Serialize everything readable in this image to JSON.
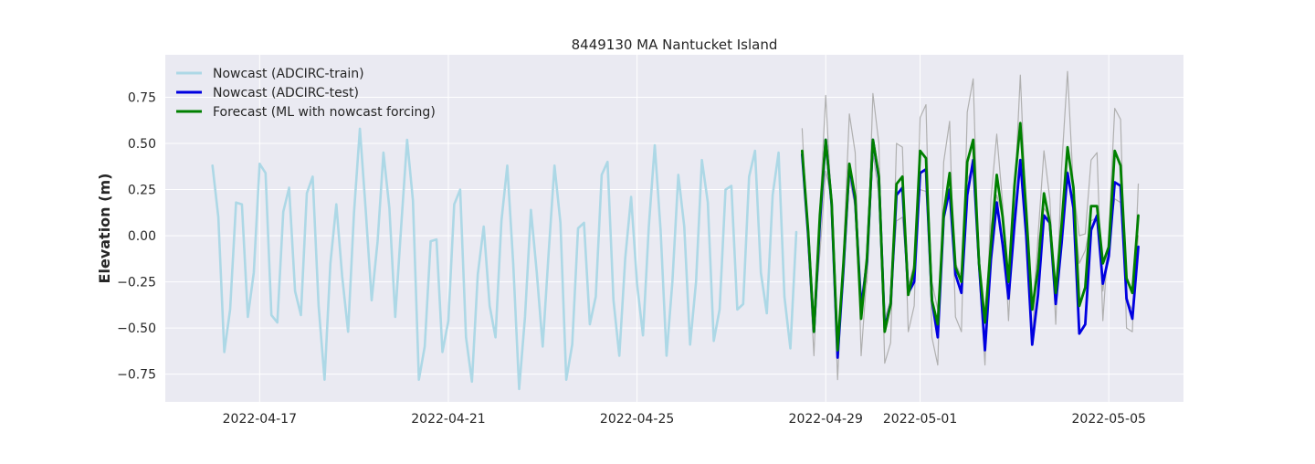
{
  "chart_data": {
    "type": "line",
    "title": "8449130 MA Nantucket Island",
    "xlabel": "",
    "ylabel": "Elevation (m)",
    "x_axis_type": "date",
    "xlim": [
      "2022-04-15T00:00",
      "2022-05-06T14:00"
    ],
    "ylim": [
      -0.9,
      0.98
    ],
    "x_ticks": [
      "2022-04-17",
      "2022-04-21",
      "2022-04-25",
      "2022-04-29",
      "2022-05-01",
      "2022-05-05"
    ],
    "y_ticks": [
      -0.75,
      -0.5,
      -0.25,
      0.0,
      0.25,
      0.5,
      0.75
    ],
    "y_tick_labels": [
      "−0.75",
      "−0.50",
      "−0.25",
      "0.00",
      "0.25",
      "0.50",
      "0.75"
    ],
    "grid": true,
    "legend_position": "upper-left",
    "series": [
      {
        "name": "Nowcast (ADCIRC-train)",
        "color": "#add8e6",
        "start": "2022-04-16T00:00",
        "step_hours": 3,
        "values": [
          0.38,
          0.1,
          -0.63,
          -0.4,
          0.18,
          0.17,
          -0.44,
          -0.2,
          0.39,
          0.34,
          -0.43,
          -0.47,
          0.13,
          0.26,
          -0.3,
          -0.43,
          0.23,
          0.32,
          -0.38,
          -0.78,
          -0.15,
          0.17,
          -0.22,
          -0.52,
          0.12,
          0.58,
          0.13,
          -0.35,
          -0.03,
          0.45,
          0.15,
          -0.44,
          0.05,
          0.52,
          0.19,
          -0.78,
          -0.6,
          -0.03,
          -0.02,
          -0.63,
          -0.46,
          0.17,
          0.25,
          -0.55,
          -0.79,
          -0.21,
          0.05,
          -0.38,
          -0.55,
          0.08,
          0.38,
          -0.15,
          -0.83,
          -0.44,
          0.14,
          -0.2,
          -0.6,
          -0.1,
          0.38,
          0.07,
          -0.78,
          -0.59,
          0.04,
          0.07,
          -0.48,
          -0.33,
          0.33,
          0.4,
          -0.35,
          -0.65,
          -0.12,
          0.21,
          -0.26,
          -0.54,
          0.05,
          0.49,
          0.03,
          -0.65,
          -0.25,
          0.33,
          0.05,
          -0.59,
          -0.25,
          0.41,
          0.18,
          -0.57,
          -0.4,
          0.25,
          0.27,
          -0.4,
          -0.37,
          0.32,
          0.46,
          -0.2,
          -0.42,
          0.22,
          0.45,
          -0.33,
          -0.61,
          0.02
        ]
      },
      {
        "name": "",
        "color": "#b0b0b0",
        "start": "2022-04-28T12:00",
        "step_hours": 3,
        "values": [
          0.58,
          -0.05,
          -0.65,
          0.15,
          0.76,
          0.15,
          -0.78,
          -0.1,
          0.66,
          0.45,
          -0.65,
          -0.2,
          0.77,
          0.5,
          -0.69,
          -0.58,
          0.5,
          0.48,
          -0.52,
          -0.38,
          0.64,
          0.71,
          -0.55,
          -0.7,
          0.4,
          0.62,
          -0.44,
          -0.52,
          0.67,
          0.85,
          -0.2,
          -0.7,
          0.2,
          0.55,
          0.17,
          -0.46,
          0.2,
          0.87,
          0.1,
          -0.58,
          0.0,
          0.46,
          0.2,
          -0.48,
          0.37,
          0.89,
          0.25,
          0.0,
          0.01,
          0.41,
          0.45,
          -0.46,
          0.02,
          0.69,
          0.63,
          -0.5,
          -0.52,
          0.28
        ]
      },
      {
        "name": "",
        "color": "#b0b0b0",
        "start": "2022-04-28T12:00",
        "step_hours": 3,
        "values": [
          0.42,
          0.05,
          -0.45,
          -0.1,
          0.35,
          0.2,
          -0.6,
          -0.25,
          0.32,
          0.15,
          -0.4,
          -0.25,
          0.45,
          0.22,
          -0.45,
          -0.35,
          0.08,
          0.1,
          -0.28,
          -0.15,
          0.25,
          0.24,
          -0.25,
          -0.4,
          0.08,
          0.25,
          -0.15,
          -0.22,
          0.3,
          0.38,
          -0.2,
          -0.45,
          0.05,
          0.22,
          0.1,
          -0.25,
          0.1,
          0.4,
          0.08,
          -0.4,
          -0.05,
          0.15,
          0.1,
          -0.35,
          0.05,
          0.35,
          0.15,
          -0.15,
          -0.08,
          0.08,
          0.1,
          -0.3,
          -0.02,
          0.2,
          0.18,
          -0.35,
          -0.4,
          0.0
        ]
      },
      {
        "name": "Nowcast (ADCIRC-test)",
        "color": "#0000e0",
        "start": "2022-04-28T12:00",
        "step_hours": 3,
        "values": [
          0.44,
          0.01,
          -0.52,
          0.07,
          0.52,
          0.17,
          -0.66,
          -0.18,
          0.38,
          0.19,
          -0.39,
          -0.14,
          0.52,
          0.31,
          -0.5,
          -0.37,
          0.22,
          0.26,
          -0.31,
          -0.25,
          0.34,
          0.36,
          -0.35,
          -0.55,
          0.1,
          0.25,
          -0.21,
          -0.31,
          0.22,
          0.41,
          -0.15,
          -0.62,
          -0.13,
          0.18,
          -0.05,
          -0.34,
          0.06,
          0.41,
          0.0,
          -0.59,
          -0.32,
          0.11,
          0.07,
          -0.37,
          -0.04,
          0.34,
          0.15,
          -0.53,
          -0.48,
          0.03,
          0.11,
          -0.26,
          -0.11,
          0.29,
          0.27,
          -0.34,
          -0.45,
          -0.06
        ]
      },
      {
        "name": "Forecast (ML with nowcast forcing)",
        "color": "#008000",
        "start": "2022-04-28T12:00",
        "step_hours": 3,
        "values": [
          0.46,
          0.03,
          -0.52,
          0.11,
          0.52,
          0.18,
          -0.62,
          -0.15,
          0.39,
          0.21,
          -0.45,
          -0.12,
          0.52,
          0.32,
          -0.52,
          -0.37,
          0.28,
          0.32,
          -0.32,
          -0.18,
          0.46,
          0.42,
          -0.35,
          -0.48,
          0.12,
          0.34,
          -0.17,
          -0.25,
          0.4,
          0.52,
          -0.15,
          -0.47,
          -0.05,
          0.33,
          0.1,
          -0.25,
          0.27,
          0.61,
          0.13,
          -0.4,
          -0.18,
          0.23,
          0.07,
          -0.31,
          0.06,
          0.48,
          0.26,
          -0.38,
          -0.28,
          0.16,
          0.16,
          -0.15,
          -0.06,
          0.46,
          0.38,
          -0.23,
          -0.31,
          0.11
        ]
      }
    ]
  }
}
